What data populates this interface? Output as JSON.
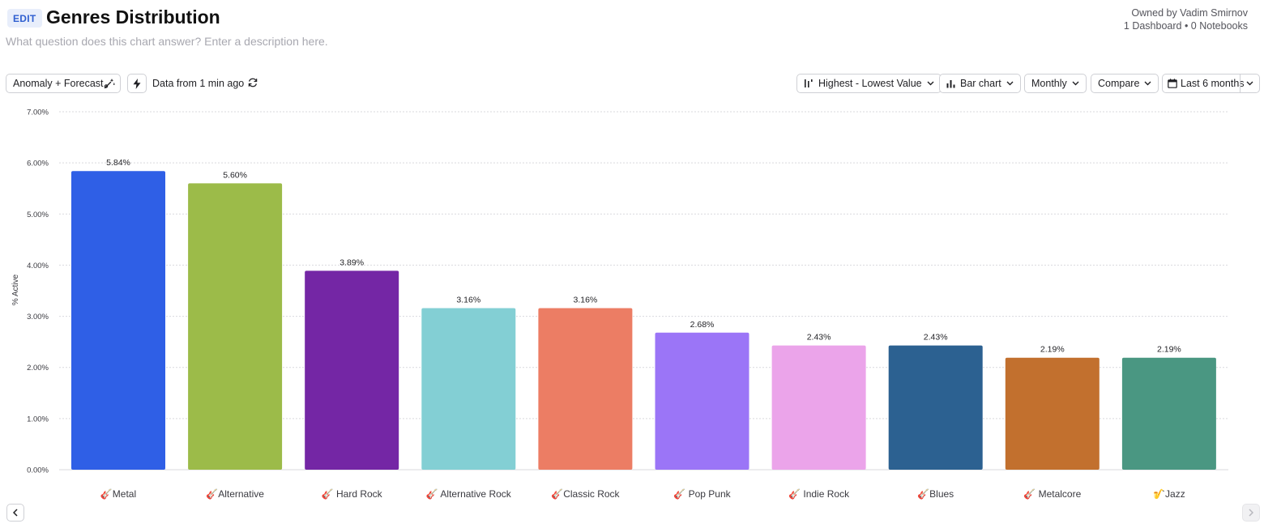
{
  "header": {
    "edit_label": "EDIT",
    "title": "Genres Distribution",
    "description_placeholder": "What question does this chart answer? Enter a description here.",
    "owner": "Owned by Vadim Smirnov",
    "links": "1 Dashboard • 0 Notebooks"
  },
  "toolbar": {
    "anomaly_label": "Anomaly + Forecast",
    "data_freshness": "Data from 1 min ago",
    "sort_label": "Highest - Lowest Value",
    "chart_type_label": "Bar chart",
    "interval_label": "Monthly",
    "compare_label": "Compare",
    "date_range_label": "Last 6 months"
  },
  "chart_data": {
    "type": "bar",
    "title": "Genres Distribution",
    "xlabel": "",
    "ylabel": "% Active",
    "ylim": [
      0,
      7
    ],
    "yticks": [
      "0.00%",
      "1.00%",
      "2.00%",
      "3.00%",
      "4.00%",
      "5.00%",
      "6.00%",
      "7.00%"
    ],
    "categories": [
      "🎸Metal",
      "🎸Alternative",
      "🎸 Hard Rock",
      "🎸 Alternative Rock",
      "🎸Classic Rock",
      "🎸 Pop Punk",
      "🎸 Indie Rock",
      "🎸Blues",
      "🎸 Metalcore",
      "🎷Jazz"
    ],
    "values": [
      5.84,
      5.6,
      3.89,
      3.16,
      3.16,
      2.68,
      2.43,
      2.43,
      2.19,
      2.19
    ],
    "value_labels": [
      "5.84%",
      "5.60%",
      "3.89%",
      "3.16%",
      "3.16%",
      "2.68%",
      "2.43%",
      "2.43%",
      "2.19%",
      "2.19%"
    ],
    "colors": [
      "#2f5fe6",
      "#9cbb49",
      "#7426a5",
      "#83cfd4",
      "#ec7d64",
      "#9b75f7",
      "#eba4ea",
      "#2c6191",
      "#c2702e",
      "#4a9782"
    ],
    "grid": true,
    "legend": "none"
  },
  "colors": {
    "accent": "#2f5fd0",
    "grid": "#d9d9de"
  }
}
